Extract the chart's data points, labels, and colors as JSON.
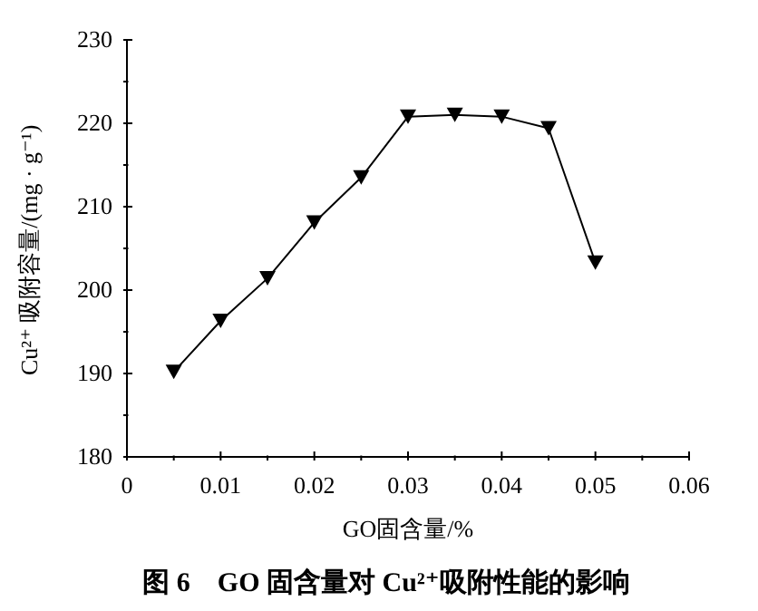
{
  "chart_data": {
    "type": "line",
    "title": "图 6　GO 固含量对 Cu²⁺吸附性能的影响",
    "xlabel": "GO固含量/%",
    "ylabel": "Cu²⁺ 吸附容量/(mg · g⁻¹)",
    "x": [
      0.005,
      0.01,
      0.015,
      0.02,
      0.025,
      0.03,
      0.035,
      0.04,
      0.045,
      0.05
    ],
    "series": [
      {
        "color": "#000000",
        "values": [
          190.2,
          196.3,
          201.4,
          208.1,
          213.5,
          220.8,
          221.0,
          220.8,
          219.4,
          203.3
        ]
      }
    ],
    "xlim": [
      0,
      0.06
    ],
    "xticks": [
      0,
      {
        "value": 0.005,
        "label": null
      },
      0.01,
      {
        "value": 0.015,
        "label": null
      },
      0.02,
      {
        "value": 0.025,
        "label": null
      },
      0.03,
      {
        "value": 0.035,
        "label": null
      },
      0.04,
      {
        "value": 0.045,
        "label": null
      },
      0.05,
      {
        "value": 0.055,
        "label": null
      },
      0.06
    ],
    "ylim": [
      180,
      230
    ],
    "yticks": [
      180,
      {
        "value": 185,
        "label": null
      },
      190,
      {
        "value": 195,
        "label": null
      },
      200,
      {
        "value": 205,
        "label": null
      },
      210,
      {
        "value": 215,
        "label": null
      },
      220,
      {
        "value": 225,
        "label": null
      },
      230
    ],
    "grid": false,
    "legend": false,
    "marker": "triangle",
    "line_style": "solid"
  }
}
